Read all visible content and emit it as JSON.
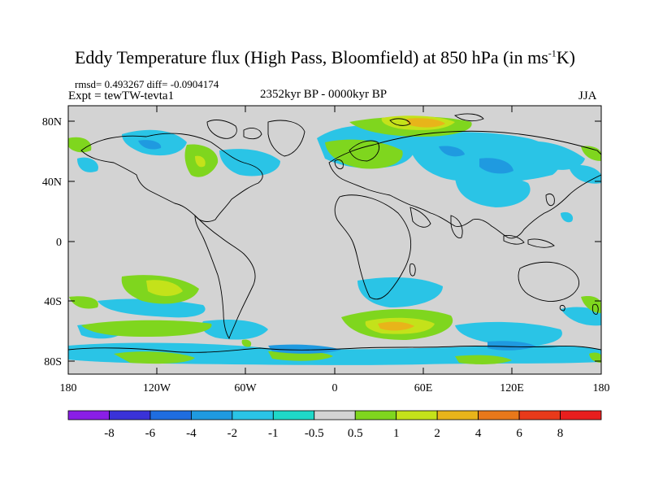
{
  "title_main": "Eddy Temperature flux (High Pass, Bloomfield) at 850 hPa (in ms",
  "title_sup": "-1",
  "title_end": "K)",
  "stats_text": "rmsd= 0.493267 diff= -0.0904174",
  "expt_text": "Expt = tewTW-tevta1",
  "period_text": "2352kyr BP - 0000kyr BP",
  "season_text": "JJA",
  "x_ticks": [
    "180",
    "120W",
    "60W",
    "0",
    "60E",
    "120E",
    "180"
  ],
  "y_ticks": [
    "80N",
    "40N",
    "0",
    "40S",
    "80S"
  ],
  "colorbar": {
    "levels": [
      "-8",
      "-6",
      "-4",
      "-2",
      "-1",
      "-0.5",
      "0.5",
      "1",
      "2",
      "4",
      "6",
      "8"
    ],
    "colors": [
      "#8a1ee6",
      "#3a32d8",
      "#1f6de0",
      "#1f9ae0",
      "#2ac4e6",
      "#1fd8c8",
      "#d3d3d3",
      "#7fd61e",
      "#c4e21a",
      "#e8b41a",
      "#e8781a",
      "#e83a1a",
      "#e81e1e"
    ]
  },
  "background_color": "#d3d3d3"
}
